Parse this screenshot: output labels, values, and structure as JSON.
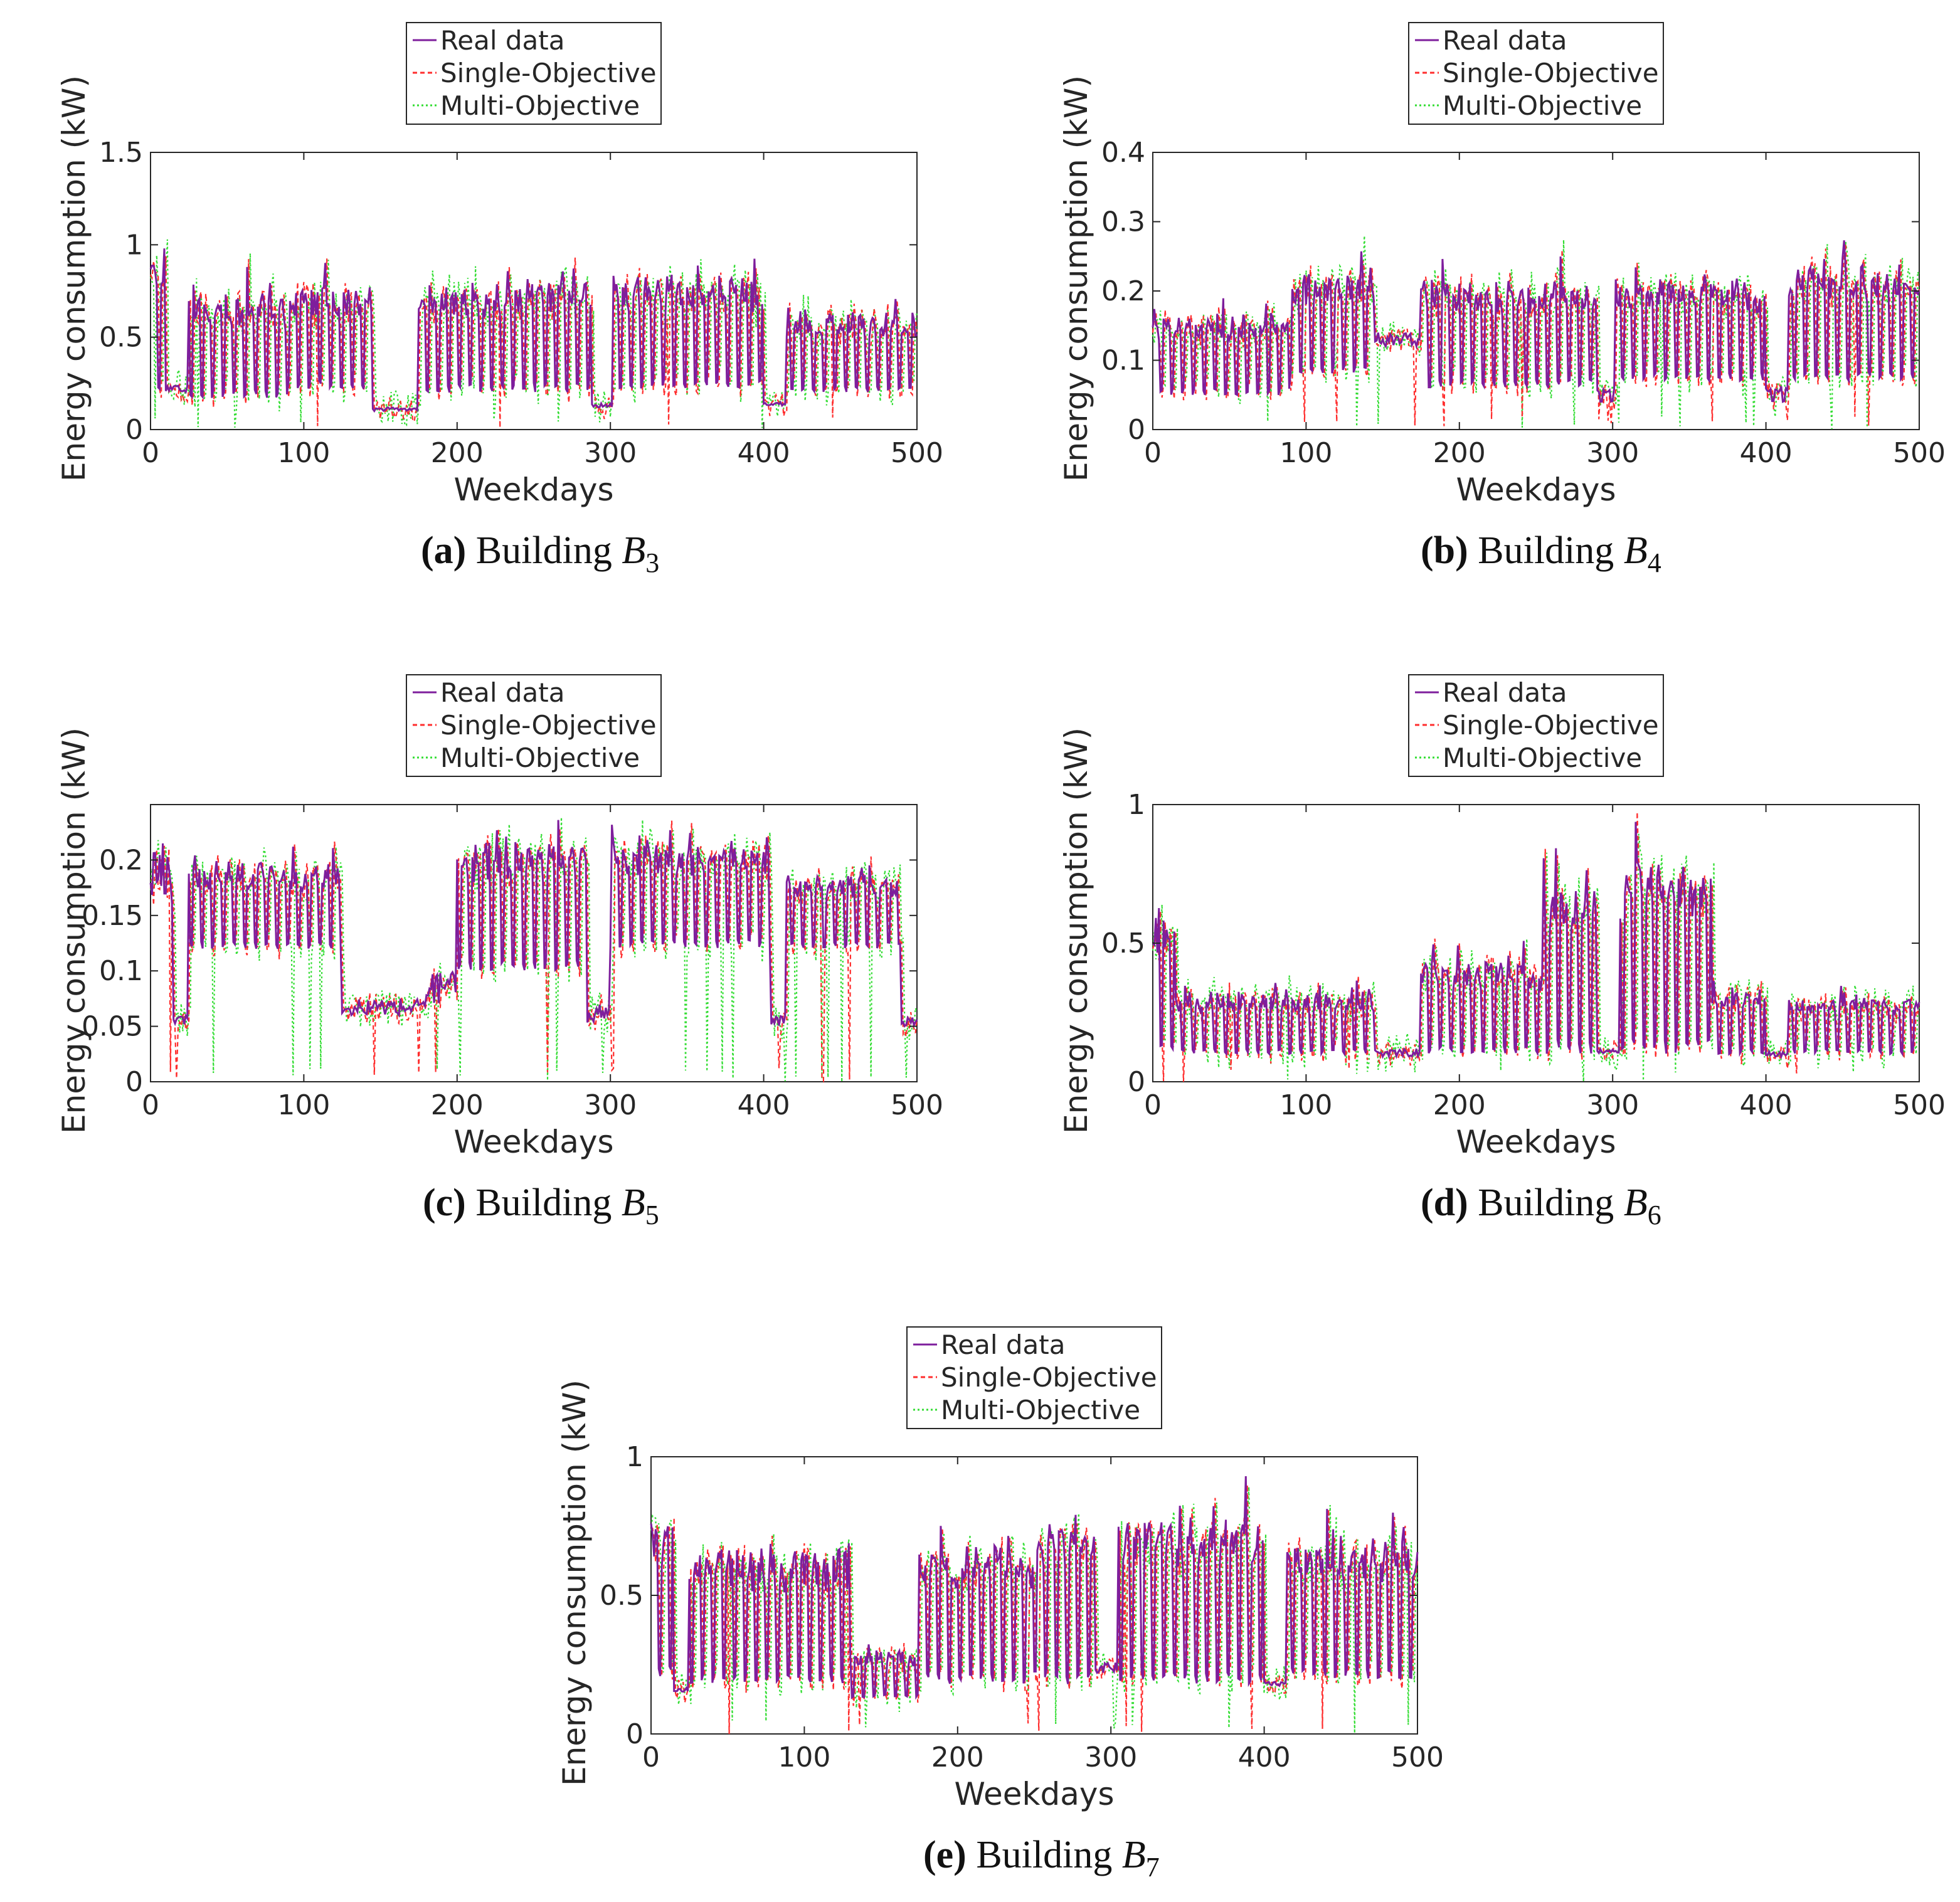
{
  "figure": {
    "series_colors": {
      "real": "#7e1e9c",
      "single": "#ff2d2d",
      "multi": "#33dd33"
    },
    "legend": [
      "Real data",
      "Single-Objective",
      "Multi-Objective"
    ]
  },
  "chart_data": [
    {
      "id": "a",
      "type": "line",
      "caption_letter": "(a)",
      "caption_text": " Building ",
      "caption_var": "B",
      "caption_sub": "3",
      "xlabel": "Weekdays",
      "ylabel": "Energy consumption (kW)",
      "xlim": [
        0,
        500
      ],
      "ylim": [
        0,
        1.5
      ],
      "xticks": [
        0,
        100,
        200,
        300,
        400,
        500
      ],
      "xtick_labels": [
        "0",
        "100",
        "200",
        "300",
        "400",
        "500"
      ],
      "yticks": [
        0,
        0.5,
        1,
        1.5
      ],
      "ytick_labels": [
        "0",
        "0.5",
        "1",
        "1.5"
      ],
      "legend_position": "top-center",
      "segments": [
        {
          "start": 0,
          "end": 10,
          "base": 0.2,
          "peak": 0.98
        },
        {
          "start": 10,
          "end": 25,
          "base": 0.2,
          "peak": 0.25
        },
        {
          "start": 25,
          "end": 90,
          "base": 0.17,
          "peak": 0.75
        },
        {
          "start": 90,
          "end": 145,
          "base": 0.22,
          "peak": 0.8
        },
        {
          "start": 145,
          "end": 175,
          "base": 0.1,
          "peak": 0.12
        },
        {
          "start": 175,
          "end": 245,
          "base": 0.2,
          "peak": 0.8
        },
        {
          "start": 245,
          "end": 288,
          "base": 0.2,
          "peak": 0.88
        },
        {
          "start": 288,
          "end": 302,
          "base": 0.12,
          "peak": 0.15
        },
        {
          "start": 302,
          "end": 400,
          "base": 0.22,
          "peak": 0.85
        },
        {
          "start": 400,
          "end": 415,
          "base": 0.13,
          "peak": 0.15
        },
        {
          "start": 415,
          "end": 500,
          "base": 0.2,
          "peak": 0.65
        }
      ]
    },
    {
      "id": "b",
      "type": "line",
      "caption_letter": "(b)",
      "caption_text": " Building ",
      "caption_var": "B",
      "caption_sub": "4",
      "xlabel": "Weekdays",
      "ylabel": "Energy consumption (kW)",
      "xlim": [
        0,
        500
      ],
      "ylim": [
        0,
        0.4
      ],
      "xticks": [
        0,
        100,
        200,
        300,
        400,
        500
      ],
      "xtick_labels": [
        "0",
        "100",
        "200",
        "300",
        "400",
        "500"
      ],
      "yticks": [
        0,
        0.1,
        0.2,
        0.3,
        0.4
      ],
      "ytick_labels": [
        "0",
        "0.1",
        "0.2",
        "0.3",
        "0.4"
      ],
      "legend_position": "top-center",
      "segments": [
        {
          "start": 0,
          "end": 90,
          "base": 0.05,
          "peak": 0.17
        },
        {
          "start": 90,
          "end": 145,
          "base": 0.08,
          "peak": 0.23
        },
        {
          "start": 145,
          "end": 175,
          "base": 0.12,
          "peak": 0.14
        },
        {
          "start": 175,
          "end": 290,
          "base": 0.06,
          "peak": 0.22
        },
        {
          "start": 290,
          "end": 302,
          "base": 0.04,
          "peak": 0.06
        },
        {
          "start": 302,
          "end": 400,
          "base": 0.07,
          "peak": 0.22
        },
        {
          "start": 400,
          "end": 415,
          "base": 0.04,
          "peak": 0.06
        },
        {
          "start": 415,
          "end": 500,
          "base": 0.07,
          "peak": 0.24
        }
      ]
    },
    {
      "id": "c",
      "type": "line",
      "caption_letter": "(c)",
      "caption_text": " Building ",
      "caption_var": "B",
      "caption_sub": "5",
      "xlabel": "Weekdays",
      "ylabel": "Energy consumption (kW)",
      "xlim": [
        0,
        500
      ],
      "ylim": [
        0,
        0.25
      ],
      "xticks": [
        0,
        100,
        200,
        300,
        400,
        500
      ],
      "xtick_labels": [
        "0",
        "100",
        "200",
        "300",
        "400",
        "500"
      ],
      "yticks": [
        0,
        0.05,
        0.1,
        0.15,
        0.2
      ],
      "ytick_labels": [
        "0",
        "0.05",
        "0.1",
        "0.15",
        "0.2"
      ],
      "legend_position": "top-center",
      "segments": [
        {
          "start": 0,
          "end": 15,
          "base": 0.16,
          "peak": 0.22
        },
        {
          "start": 15,
          "end": 25,
          "base": 0.05,
          "peak": 0.06
        },
        {
          "start": 25,
          "end": 125,
          "base": 0.12,
          "peak": 0.2
        },
        {
          "start": 125,
          "end": 180,
          "base": 0.06,
          "peak": 0.075
        },
        {
          "start": 180,
          "end": 200,
          "base": 0.07,
          "peak": 0.1
        },
        {
          "start": 200,
          "end": 285,
          "base": 0.1,
          "peak": 0.22
        },
        {
          "start": 285,
          "end": 300,
          "base": 0.05,
          "peak": 0.07
        },
        {
          "start": 300,
          "end": 405,
          "base": 0.12,
          "peak": 0.22
        },
        {
          "start": 405,
          "end": 415,
          "base": 0.05,
          "peak": 0.06
        },
        {
          "start": 415,
          "end": 490,
          "base": 0.12,
          "peak": 0.19
        },
        {
          "start": 490,
          "end": 500,
          "base": 0.05,
          "peak": 0.06
        }
      ]
    },
    {
      "id": "d",
      "type": "line",
      "caption_letter": "(d)",
      "caption_text": " Building ",
      "caption_var": "B",
      "caption_sub": "6",
      "xlabel": "Weekdays",
      "ylabel": "Energy consumption (kW)",
      "xlim": [
        0,
        500
      ],
      "ylim": [
        0,
        1
      ],
      "xticks": [
        0,
        100,
        200,
        300,
        400,
        500
      ],
      "xtick_labels": [
        "0",
        "100",
        "200",
        "300",
        "400",
        "500"
      ],
      "yticks": [
        0,
        0.5,
        1
      ],
      "ytick_labels": [
        "0",
        "0.5",
        "1"
      ],
      "legend_position": "top-center",
      "segments": [
        {
          "start": 0,
          "end": 15,
          "base": 0.1,
          "peak": 0.65
        },
        {
          "start": 15,
          "end": 145,
          "base": 0.1,
          "peak": 0.33
        },
        {
          "start": 145,
          "end": 175,
          "base": 0.09,
          "peak": 0.12
        },
        {
          "start": 175,
          "end": 255,
          "base": 0.1,
          "peak": 0.45
        },
        {
          "start": 255,
          "end": 290,
          "base": 0.1,
          "peak": 0.75
        },
        {
          "start": 290,
          "end": 305,
          "base": 0.1,
          "peak": 0.12
        },
        {
          "start": 305,
          "end": 365,
          "base": 0.1,
          "peak": 0.82
        },
        {
          "start": 365,
          "end": 400,
          "base": 0.1,
          "peak": 0.35
        },
        {
          "start": 400,
          "end": 415,
          "base": 0.09,
          "peak": 0.11
        },
        {
          "start": 415,
          "end": 500,
          "base": 0.1,
          "peak": 0.32
        }
      ]
    },
    {
      "id": "e",
      "type": "line",
      "caption_letter": "(e)",
      "caption_text": " Building ",
      "caption_var": "B",
      "caption_sub": "7",
      "xlabel": "Weekdays",
      "ylabel": "Energy consumption (kW)",
      "xlim": [
        0,
        500
      ],
      "ylim": [
        0,
        1
      ],
      "xticks": [
        0,
        100,
        200,
        300,
        400,
        500
      ],
      "xtick_labels": [
        "0",
        "100",
        "200",
        "300",
        "400",
        "500"
      ],
      "yticks": [
        0,
        0.5,
        1
      ],
      "ytick_labels": [
        "0",
        "0.5",
        "1"
      ],
      "legend_position": "top-center",
      "segments": [
        {
          "start": 0,
          "end": 15,
          "base": 0.2,
          "peak": 0.8
        },
        {
          "start": 15,
          "end": 25,
          "base": 0.15,
          "peak": 0.17
        },
        {
          "start": 25,
          "end": 130,
          "base": 0.18,
          "peak": 0.68
        },
        {
          "start": 130,
          "end": 175,
          "base": 0.13,
          "peak": 0.3
        },
        {
          "start": 175,
          "end": 250,
          "base": 0.18,
          "peak": 0.7
        },
        {
          "start": 250,
          "end": 290,
          "base": 0.18,
          "peak": 0.82
        },
        {
          "start": 290,
          "end": 305,
          "base": 0.22,
          "peak": 0.26
        },
        {
          "start": 305,
          "end": 400,
          "base": 0.18,
          "peak": 0.8
        },
        {
          "start": 400,
          "end": 415,
          "base": 0.17,
          "peak": 0.19
        },
        {
          "start": 415,
          "end": 500,
          "base": 0.2,
          "peak": 0.72
        }
      ]
    }
  ]
}
